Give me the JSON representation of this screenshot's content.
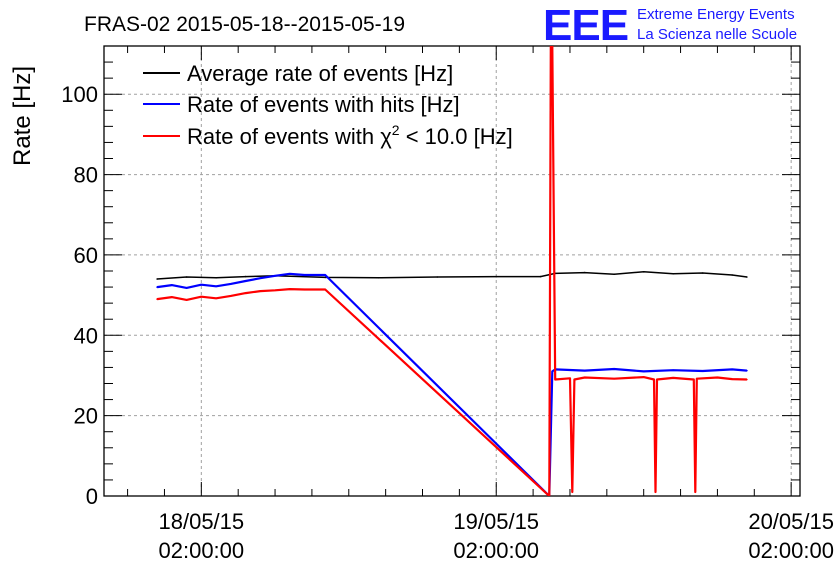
{
  "chart_data": {
    "type": "line",
    "title": "FRAS-02 2015-05-18--2015-05-19",
    "ylabel": "Rate [Hz]",
    "xlabel": "",
    "ylim": [
      0,
      112
    ],
    "yticks": [
      0,
      20,
      40,
      60,
      80,
      100
    ],
    "xlim": [
      -0.33,
      2.03
    ],
    "xticks": [
      {
        "x": 0,
        "date": "18/05/15",
        "time": "02:00:00"
      },
      {
        "x": 1,
        "date": "19/05/15",
        "time": "02:00:00"
      },
      {
        "x": 2,
        "date": "20/05/15",
        "time": "02:00:00"
      }
    ],
    "grid": true,
    "legend_position": "top-left",
    "x_units": "days since 18/05/15 02:00:00",
    "series": [
      {
        "name": "Average rate of events [Hz]",
        "legend_label": "Average rate of events [Hz]",
        "color": "#000000",
        "x": [
          -0.15,
          -0.05,
          0.05,
          0.15,
          0.25,
          0.42,
          0.6,
          0.8,
          1.0,
          1.15,
          1.2,
          1.3,
          1.4,
          1.5,
          1.6,
          1.7,
          1.8,
          1.85
        ],
        "y": [
          54,
          54.5,
          54.3,
          54.6,
          54.8,
          54.4,
          54.3,
          54.5,
          54.6,
          54.6,
          55.4,
          55.6,
          55.2,
          55.8,
          55.3,
          55.5,
          55,
          54.5
        ]
      },
      {
        "name": "Rate of events with hits [Hz]",
        "legend_label": "Rate of events with hits [Hz]",
        "color": "#0000ff",
        "x": [
          -0.15,
          -0.1,
          -0.05,
          0,
          0.05,
          0.1,
          0.15,
          0.2,
          0.25,
          0.3,
          0.35,
          0.42,
          1.18,
          1.19,
          1.2,
          1.3,
          1.4,
          1.5,
          1.6,
          1.7,
          1.8,
          1.85
        ],
        "y": [
          52,
          52.5,
          51.8,
          52.6,
          52.2,
          52.8,
          53.5,
          54.2,
          54.8,
          55.3,
          55,
          55,
          0,
          31,
          31.5,
          31.2,
          31.6,
          31,
          31.3,
          31.1,
          31.5,
          31.2
        ]
      },
      {
        "name": "Rate of events with chi2 < 10.0 [Hz]",
        "legend_prefix": "Rate of events with ",
        "legend_chi": "χ",
        "legend_sup": "2",
        "legend_suffix": " < 10.0 [Hz]",
        "color": "#ff0000",
        "x": [
          -0.15,
          -0.1,
          -0.05,
          0,
          0.05,
          0.1,
          0.15,
          0.2,
          0.25,
          0.3,
          0.35,
          0.42,
          1.18,
          1.185,
          1.19,
          1.2,
          1.25,
          1.258,
          1.265,
          1.3,
          1.4,
          1.5,
          1.535,
          1.54,
          1.545,
          1.6,
          1.67,
          1.675,
          1.68,
          1.75,
          1.8,
          1.85
        ],
        "y": [
          49,
          49.5,
          48.8,
          49.6,
          49.2,
          49.8,
          50.5,
          51,
          51.2,
          51.5,
          51.4,
          51.4,
          0,
          112,
          112,
          29,
          29.3,
          1,
          29,
          29.5,
          29.2,
          29.6,
          29,
          1,
          29,
          29.4,
          29,
          1,
          29.2,
          29.5,
          29.1,
          29
        ]
      }
    ]
  }
}
